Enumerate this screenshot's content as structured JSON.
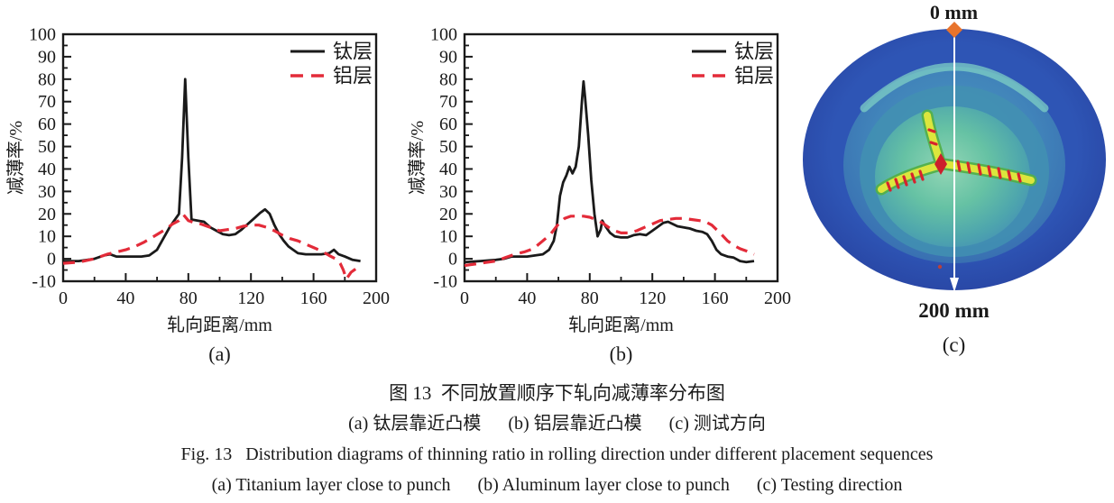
{
  "figure": {
    "captions": {
      "cn_title": "图 13  不同放置顺序下轧向减薄率分布图",
      "cn_sub": "(a) 钛层靠近凸模      (b) 铝层靠近凸模      (c) 测试方向",
      "en_title": "Fig. 13   Distribution diagrams of thinning ratio in rolling direction under different placement sequences",
      "en_sub": "(a) Titanium layer close to punch      (b) Aluminum layer close to punch      (c) Testing direction"
    },
    "colors": {
      "titanium_line": "#1a1a1a",
      "aluminum_line": "#e32b39",
      "outer_ring_blue": "#2b4fae",
      "cup_blue": "#3e7cb6",
      "dome_green": "#66c2a4",
      "marker_orange": "#e8742d"
    }
  },
  "photo_panel": {
    "top_label": "0 mm",
    "bottom_label": "200 mm",
    "panel_label": "(c)",
    "description_icons": [
      "measure-line-icon",
      "diamond-marker-icon",
      "arrow-down-icon"
    ]
  },
  "chart_data": [
    {
      "type": "line",
      "panel_label": "(a)",
      "xlabel": "轧向距离/mm",
      "ylabel": "减薄率/%",
      "xlim": [
        0,
        200
      ],
      "ylim": [
        -10,
        100
      ],
      "xticks": [
        0,
        40,
        80,
        120,
        160,
        200
      ],
      "yticks": [
        -10,
        0,
        10,
        20,
        30,
        40,
        50,
        60,
        70,
        80,
        90,
        100
      ],
      "x_minor_step": 20,
      "y_minor_step": 5,
      "grid": false,
      "legend_position": "top-right",
      "series": [
        {
          "name": "钛层",
          "color": "#1a1a1a",
          "dash": "solid",
          "x": [
            0,
            10,
            20,
            26,
            30,
            34,
            40,
            50,
            55,
            60,
            64,
            68,
            71,
            74,
            76,
            78,
            80,
            82,
            86,
            90,
            94,
            98,
            102,
            106,
            110,
            114,
            118,
            122,
            126,
            129,
            132,
            135,
            138,
            141,
            144,
            147,
            150,
            155,
            160,
            165,
            170,
            173,
            176,
            180,
            185,
            190
          ],
          "y": [
            -1,
            -1,
            0,
            1.5,
            2,
            1,
            1,
            1,
            1.5,
            4,
            9,
            14,
            17,
            20,
            45,
            80,
            45,
            17.5,
            17,
            16.5,
            14,
            12.5,
            11,
            10.5,
            11,
            13,
            15.5,
            18,
            20.5,
            22,
            20,
            15,
            11,
            8,
            5.5,
            4,
            2.5,
            2,
            2,
            2,
            2.5,
            4,
            2,
            1,
            -0.5,
            -1
          ]
        },
        {
          "name": "铝层",
          "color": "#e32b39",
          "dash": "dashed",
          "x": [
            0,
            10,
            20,
            28,
            34,
            40,
            46,
            52,
            58,
            64,
            70,
            74,
            77,
            80,
            84,
            88,
            92,
            96,
            100,
            105,
            110,
            115,
            120,
            125,
            130,
            135,
            140,
            145,
            150,
            155,
            160,
            165,
            170,
            174,
            177,
            179,
            181,
            184,
            187,
            190
          ],
          "y": [
            -2,
            -1.5,
            0,
            2,
            3,
            4,
            5.5,
            7.5,
            10,
            12.5,
            15.5,
            17,
            19.5,
            17,
            16,
            15.5,
            14.5,
            13.5,
            12.5,
            13,
            13.5,
            14.5,
            15,
            15,
            14,
            12.5,
            10.5,
            9,
            8,
            6.5,
            5,
            3.5,
            1.5,
            0,
            -2,
            -5,
            -9,
            -6,
            -4.5,
            -4.5
          ]
        }
      ]
    },
    {
      "type": "line",
      "panel_label": "(b)",
      "xlabel": "轧向距离/mm",
      "ylabel": "减薄率/%",
      "xlim": [
        0,
        200
      ],
      "ylim": [
        -10,
        100
      ],
      "xticks": [
        0,
        40,
        80,
        120,
        160,
        200
      ],
      "yticks": [
        -10,
        0,
        10,
        20,
        30,
        40,
        50,
        60,
        70,
        80,
        90,
        100
      ],
      "x_minor_step": 20,
      "y_minor_step": 5,
      "grid": false,
      "legend_position": "top-right",
      "series": [
        {
          "name": "钛层",
          "color": "#1a1a1a",
          "dash": "solid",
          "x": [
            0,
            10,
            20,
            25,
            30,
            35,
            40,
            45,
            50,
            54,
            57,
            59,
            61,
            63,
            65,
            67,
            69,
            71,
            73,
            75,
            76,
            77,
            79,
            81,
            83,
            85,
            87,
            88,
            90,
            93,
            96,
            100,
            104,
            108,
            112,
            116,
            120,
            124,
            127,
            130,
            133,
            136,
            140,
            144,
            148,
            152,
            155,
            158,
            161,
            164,
            168,
            172,
            176,
            180,
            185
          ],
          "y": [
            -1.5,
            -1,
            -0.5,
            0,
            1,
            1,
            1,
            1.5,
            2,
            4,
            8,
            15,
            28,
            34,
            37,
            41,
            38,
            41,
            50,
            70,
            79,
            72,
            55,
            35,
            20,
            10,
            13,
            17,
            14.5,
            11.5,
            10,
            9.5,
            9.5,
            10.5,
            11,
            10.5,
            12.5,
            14.5,
            16,
            16.5,
            15.5,
            14.5,
            14,
            13.5,
            12.5,
            12,
            11,
            8,
            4,
            2,
            1,
            0.5,
            -1,
            -1.5,
            -1
          ]
        },
        {
          "name": "铝层",
          "color": "#e32b39",
          "dash": "dashed",
          "x": [
            0,
            10,
            20,
            26,
            32,
            38,
            44,
            50,
            55,
            60,
            64,
            68,
            72,
            76,
            80,
            84,
            88,
            92,
            96,
            100,
            105,
            110,
            115,
            120,
            125,
            130,
            135,
            140,
            145,
            150,
            154,
            158,
            161,
            164,
            168,
            172,
            176,
            180,
            185
          ],
          "y": [
            -3,
            -2,
            -1,
            0.5,
            2,
            3,
            4.5,
            8,
            11,
            15.5,
            18,
            19,
            19,
            19,
            18.5,
            17.5,
            16,
            14,
            12.5,
            11.5,
            11.5,
            12.5,
            14,
            15.5,
            17,
            17.5,
            18,
            18,
            17.5,
            17,
            16.5,
            15,
            13,
            11,
            8,
            6,
            4.5,
            3.5,
            2
          ]
        }
      ]
    }
  ]
}
